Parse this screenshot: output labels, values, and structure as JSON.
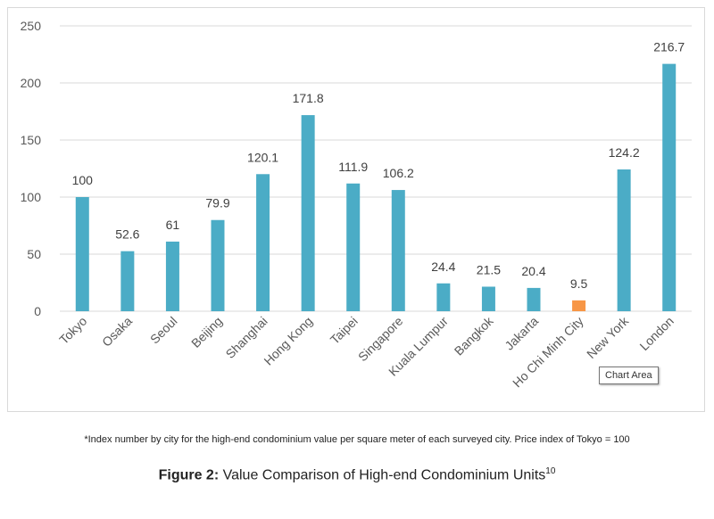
{
  "chart_data": {
    "type": "bar",
    "categories": [
      "Tokyo",
      "Osaka",
      "Seoul",
      "Beijing",
      "Shanghai",
      "Hong Kong",
      "Taipei",
      "Singapore",
      "Kuala Lumpur",
      "Bangkok",
      "Jakarta",
      "Ho Chi Minh City",
      "New York",
      "London"
    ],
    "values": [
      100,
      52.6,
      61,
      79.9,
      120.1,
      171.8,
      111.9,
      106.2,
      24.4,
      21.5,
      20.4,
      9.5,
      124.2,
      216.7
    ],
    "value_labels": [
      "100",
      "52.6",
      "61",
      "79.9",
      "120.1",
      "171.8",
      "111.9",
      "106.2",
      "24.4",
      "21.5",
      "20.4",
      "9.5",
      "124.2",
      "216.7"
    ],
    "yticks": [
      "0",
      "50",
      "100",
      "150",
      "200",
      "250"
    ],
    "ylim": [
      0,
      250
    ],
    "grid": true,
    "colors": {
      "default": "#4bacc6",
      "highlight": "#f79646",
      "grid": "#d9d9d9"
    },
    "highlight_category": "Ho Chi Minh City"
  },
  "tooltip": {
    "text": "Chart Area"
  },
  "footnote": "*Index number by city for the high-end condominium value per square meter of each surveyed city. Price index of Tokyo = 100",
  "caption": {
    "label": "Figure 2:",
    "text": "Value Comparison of High-end Condominium Units",
    "ref": "10"
  }
}
